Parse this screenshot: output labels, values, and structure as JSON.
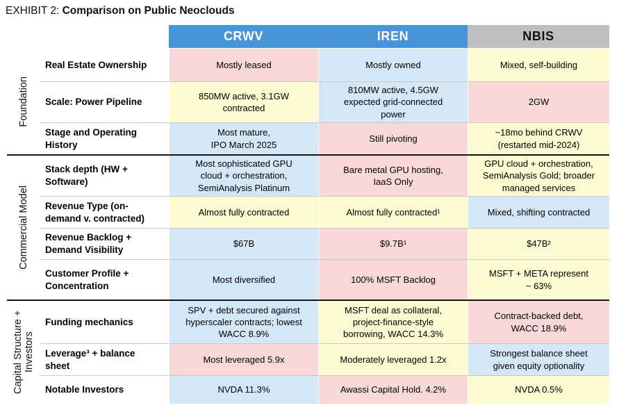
{
  "title": {
    "prefix": "EXHIBIT 2: ",
    "main": "Comparison on Public Neoclouds"
  },
  "colors": {
    "header_blue": "#4795D6",
    "header_gray": "#BFBFBF",
    "cell_pink": "#F9D8DA",
    "cell_blue": "#D4E7F6",
    "cell_yellow": "#FCFAD1"
  },
  "columns": [
    {
      "id": "crwv",
      "label": "CRWV",
      "header_style": "blue"
    },
    {
      "id": "iren",
      "label": "IREN",
      "header_style": "blue"
    },
    {
      "id": "nbis",
      "label": "NBIS",
      "header_style": "gray"
    }
  ],
  "sections": [
    {
      "label": "Foundation",
      "rows": [
        {
          "label": "Real Estate Ownership",
          "cells": [
            {
              "text": "Mostly leased",
              "color": "pink"
            },
            {
              "text": "Mostly owned",
              "color": "blue"
            },
            {
              "text": "Mixed, self-building",
              "color": "yellow"
            }
          ]
        },
        {
          "label": "Scale: Power Pipeline",
          "cells": [
            {
              "text": "850MW active, 3.1GW\ncontracted",
              "color": "yellow"
            },
            {
              "text": "810MW active, 4.5GW\nexpected grid-connected\npower",
              "color": "blue"
            },
            {
              "text": "2GW",
              "color": "pink"
            }
          ]
        },
        {
          "label": "Stage and Operating\nHistory",
          "cells": [
            {
              "text": "Most mature,\nIPO March 2025",
              "color": "blue"
            },
            {
              "text": "Still pivoting",
              "color": "pink"
            },
            {
              "text": "~18mo behind CRWV\n(restarted mid-2024)",
              "color": "yellow"
            }
          ]
        }
      ]
    },
    {
      "label": "Commercial Model",
      "rows": [
        {
          "label": "Stack depth (HW +\nSoftware)",
          "cells": [
            {
              "text": "Most sophisticated GPU\ncloud + orchestration,\nSemiAnalysis Platinum",
              "color": "blue"
            },
            {
              "text": "Bare metal GPU hosting,\nIaaS Only",
              "color": "pink"
            },
            {
              "text": "GPU cloud + orchestration,\nSemiAnalysis Gold; broader\nmanaged services",
              "color": "yellow"
            }
          ]
        },
        {
          "label": "Revenue Type (on-\ndemand v. contracted)",
          "cells": [
            {
              "text": "Almost fully contracted",
              "color": "yellow"
            },
            {
              "text": "Almost fully contracted¹",
              "color": "yellow"
            },
            {
              "text": "Mixed, shifting contracted",
              "color": "blue"
            }
          ]
        },
        {
          "label": "Revenue Backlog +\nDemand Visibility",
          "cells": [
            {
              "text": "$67B",
              "color": "blue"
            },
            {
              "text": "$9.7B¹",
              "color": "pink"
            },
            {
              "text": "$47B²",
              "color": "yellow"
            }
          ]
        },
        {
          "label": "Customer Profile +\nConcentration",
          "cells": [
            {
              "text": "Most diversified",
              "color": "blue"
            },
            {
              "text": "100% MSFT Backlog",
              "color": "pink"
            },
            {
              "text": "MSFT + META represent\n~ 63%",
              "color": "yellow"
            }
          ]
        }
      ]
    },
    {
      "label": "Capital Structure + Investors",
      "rows": [
        {
          "label": "Funding mechanics",
          "cells": [
            {
              "text": "SPV + debt secured against\nhyperscaler contracts; lowest\nWACC 8.9%",
              "color": "blue"
            },
            {
              "text": "MSFT deal as collateral,\nproject-finance-style\nborrowing, WACC 14.3%",
              "color": "yellow"
            },
            {
              "text": "Contract-backed debt,\nWACC 18.9%",
              "color": "pink"
            }
          ]
        },
        {
          "label": "Leverage³ + balance\nsheet",
          "cells": [
            {
              "text": "Most leveraged 5.9x",
              "color": "pink"
            },
            {
              "text": "Moderately leveraged 1.2x",
              "color": "yellow"
            },
            {
              "text": "Strongest balance sheet\ngiven equity optionality",
              "color": "blue"
            }
          ]
        },
        {
          "label": "Notable Investors",
          "cells": [
            {
              "text": "NVDA 11.3%",
              "color": "blue"
            },
            {
              "text": "Awassi Capital Hold. 4.2%",
              "color": "pink"
            },
            {
              "text": "NVDA 0.5%",
              "color": "yellow"
            }
          ]
        }
      ]
    }
  ]
}
